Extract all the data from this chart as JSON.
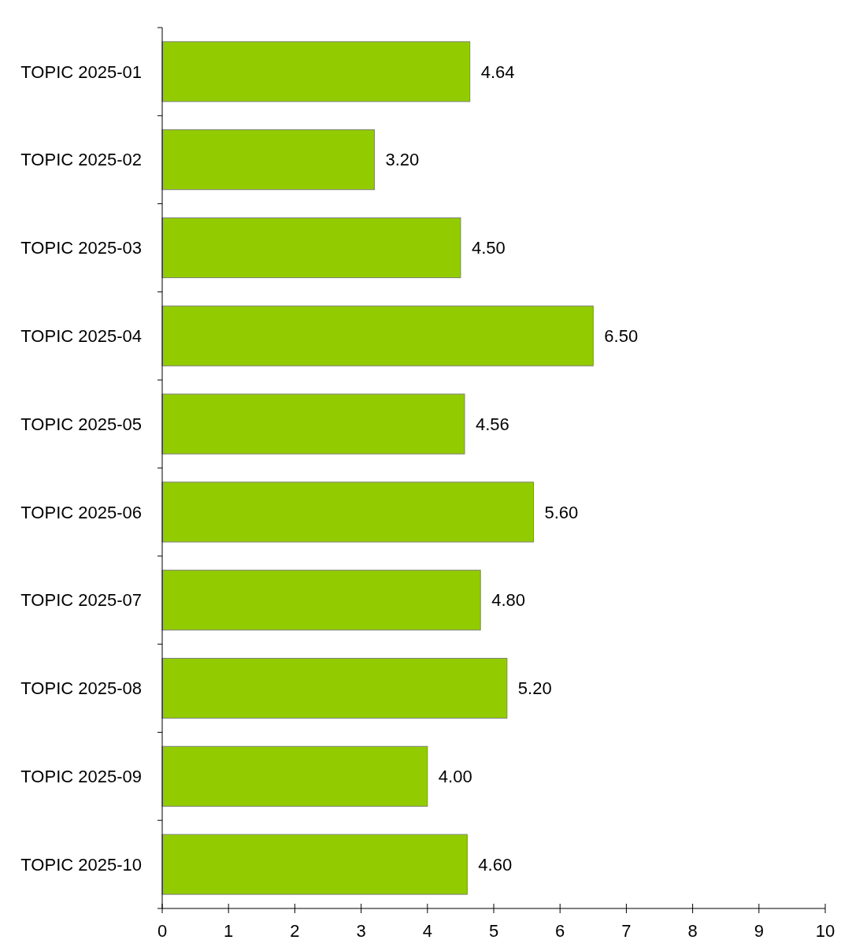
{
  "chart_data": {
    "type": "bar",
    "orientation": "horizontal",
    "categories": [
      "TOPIC 2025-01",
      "TOPIC 2025-02",
      "TOPIC 2025-03",
      "TOPIC 2025-04",
      "TOPIC 2025-05",
      "TOPIC 2025-06",
      "TOPIC 2025-07",
      "TOPIC 2025-08",
      "TOPIC 2025-09",
      "TOPIC 2025-10"
    ],
    "values": [
      4.64,
      3.2,
      4.5,
      6.5,
      4.56,
      5.6,
      4.8,
      5.2,
      4.0,
      4.6
    ],
    "value_labels": [
      "4.64",
      "3.20",
      "4.50",
      "6.50",
      "4.56",
      "5.60",
      "4.80",
      "5.20",
      "4.00",
      "4.60"
    ],
    "color": "#92cc00",
    "xlim": [
      0,
      10
    ],
    "xticks": [
      0,
      1,
      2,
      3,
      4,
      5,
      6,
      7,
      8,
      9,
      10
    ]
  }
}
